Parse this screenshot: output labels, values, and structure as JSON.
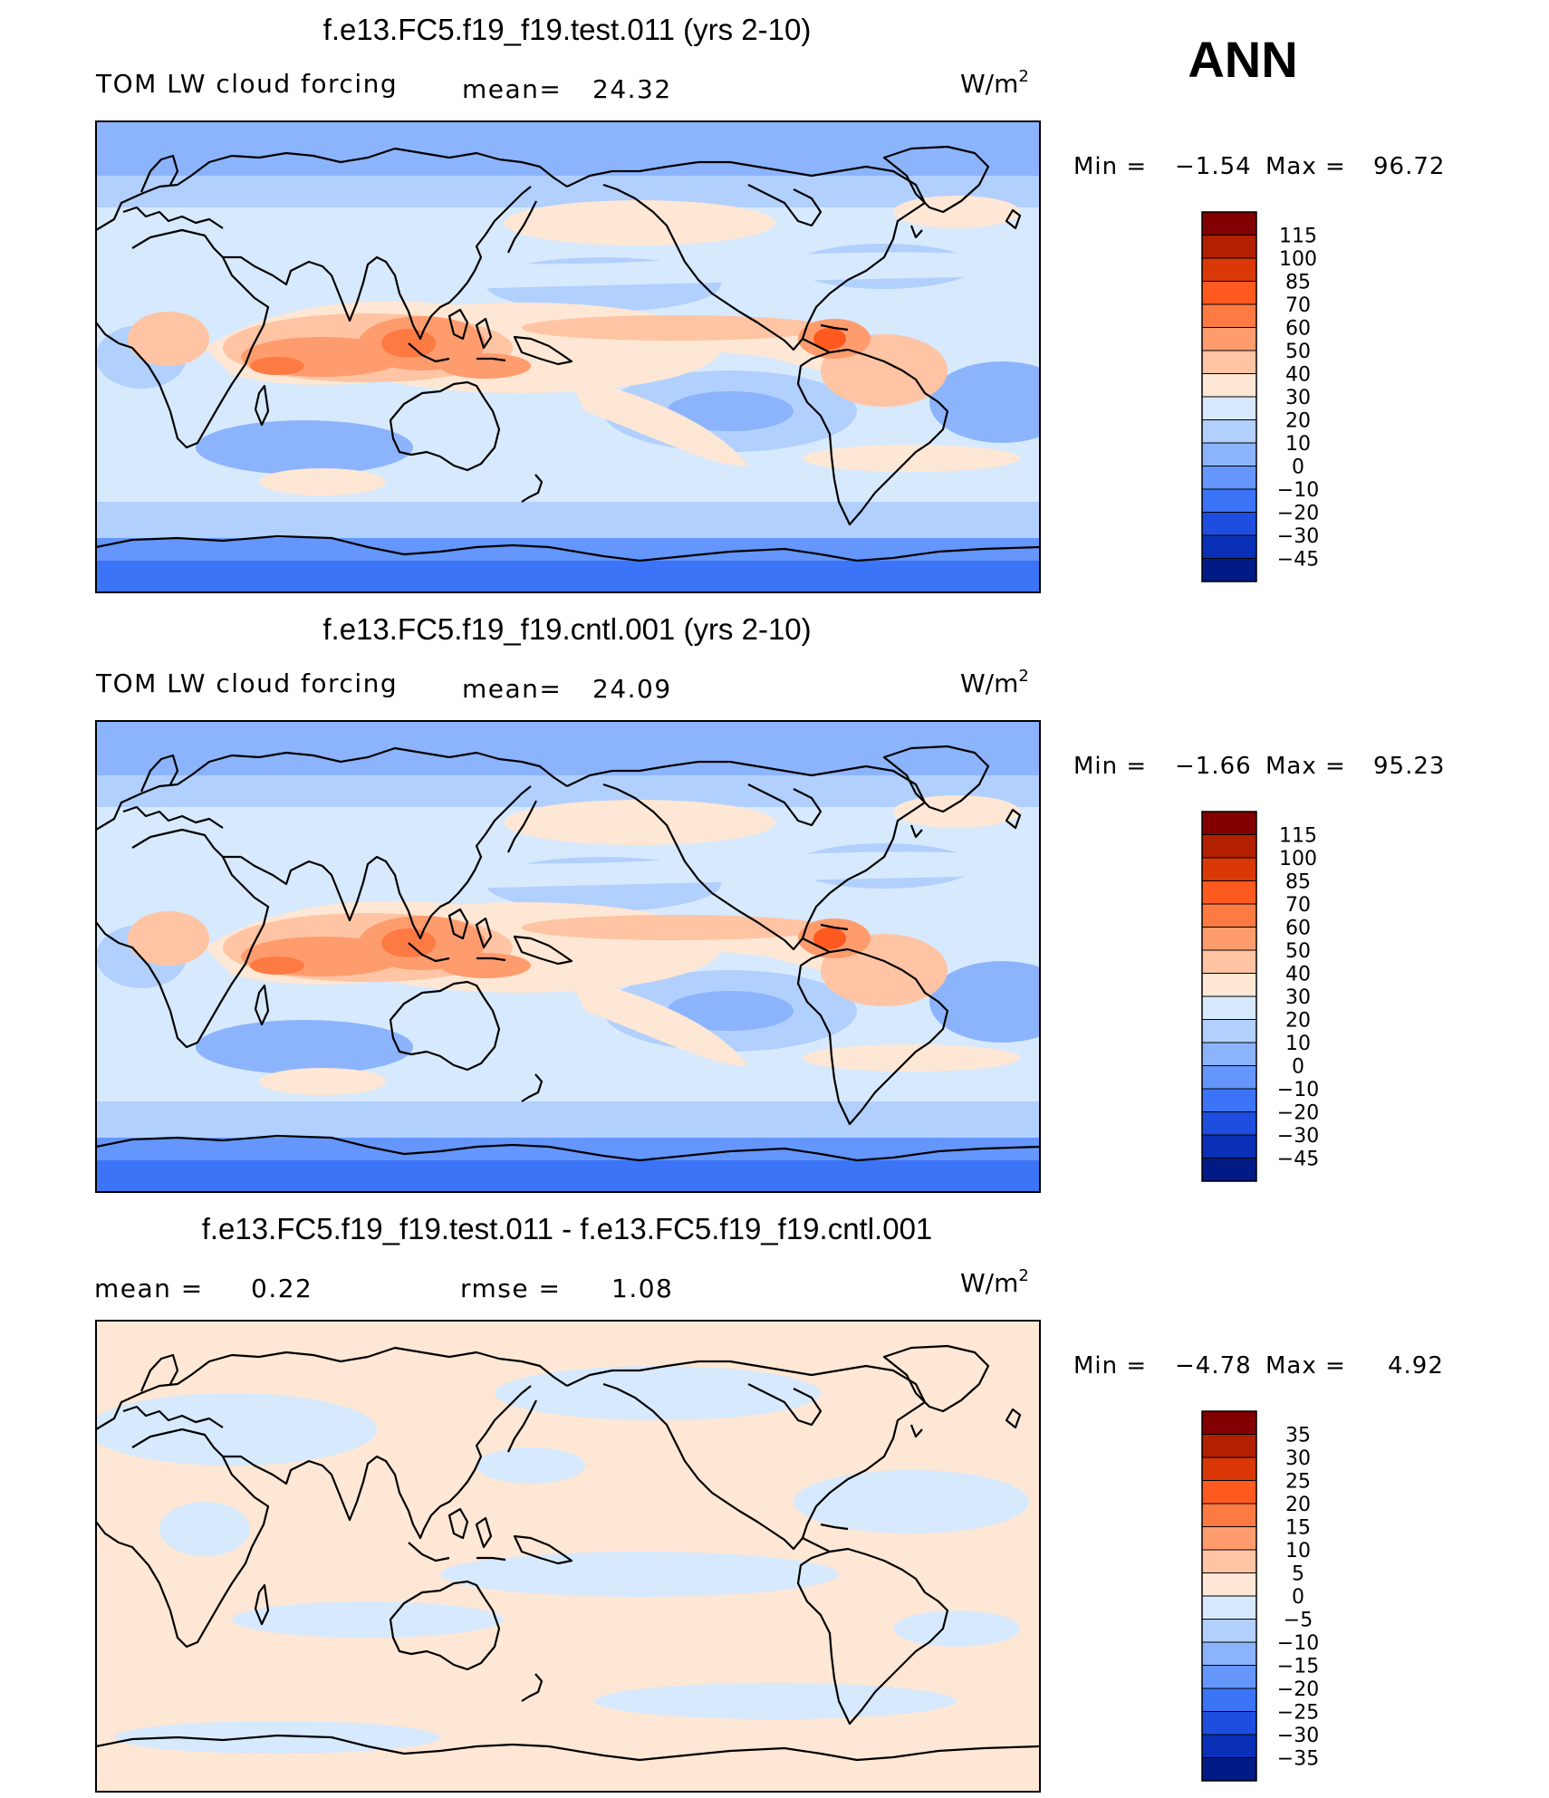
{
  "season_label": "ANN",
  "units": {
    "base": "W/m",
    "exp": "2"
  },
  "panels": [
    {
      "title": "f.e13.FC5.f19_f19.test.011 (yrs 2-10)",
      "left_label": "TOM LW cloud forcing",
      "mean_label": "mean=",
      "mean_value": "24.32",
      "min_label": "Min =",
      "min_value": "−1.54",
      "max_label": "Max =",
      "max_value": "96.72",
      "colorbar_labels": [
        "115",
        "100",
        "85",
        "70",
        "60",
        "50",
        "40",
        "30",
        "20",
        "10",
        "0",
        "−10",
        "−20",
        "−30",
        "−45"
      ]
    },
    {
      "title": "f.e13.FC5.f19_f19.cntl.001 (yrs 2-10)",
      "left_label": "TOM LW cloud forcing",
      "mean_label": "mean=",
      "mean_value": "24.09",
      "min_label": "Min =",
      "min_value": "−1.66",
      "max_label": "Max =",
      "max_value": "95.23",
      "colorbar_labels": [
        "115",
        "100",
        "85",
        "70",
        "60",
        "50",
        "40",
        "30",
        "20",
        "10",
        "0",
        "−10",
        "−20",
        "−30",
        "−45"
      ]
    },
    {
      "title": "f.e13.FC5.f19_f19.test.011 - f.e13.FC5.f19_f19.cntl.001",
      "left_label": "mean =",
      "left_value": "0.22",
      "rmse_label": "rmse =",
      "rmse_value": "1.08",
      "min_label": "Min =",
      "min_value": "−4.78",
      "max_label": "Max =",
      "max_value": "4.92",
      "colorbar_labels": [
        "35",
        "30",
        "25",
        "20",
        "15",
        "10",
        "5",
        "0",
        "−5",
        "−10",
        "−15",
        "−20",
        "−25",
        "−30",
        "−35"
      ]
    }
  ],
  "colors": {
    "field_palette": [
      "#830000",
      "#b22000",
      "#da3806",
      "#fe5a1f",
      "#fe7a43",
      "#fe9c6e",
      "#fec4a3",
      "#fee7d4",
      "#d7e9fd",
      "#b2d0fd",
      "#8cb4fd",
      "#6496fb",
      "#3b74f7",
      "#1d4ee0",
      "#0a30b8",
      "#001b86"
    ],
    "diff_palette": [
      "#830000",
      "#b22000",
      "#da3806",
      "#fe5a1f",
      "#fe7a43",
      "#fe9c6e",
      "#fec4a3",
      "#fee7d4",
      "#d7e9fd",
      "#b2d0fd",
      "#8cb4fd",
      "#6496fb",
      "#3b74f7",
      "#1d4ee0",
      "#0a30b8",
      "#001b86"
    ]
  }
}
